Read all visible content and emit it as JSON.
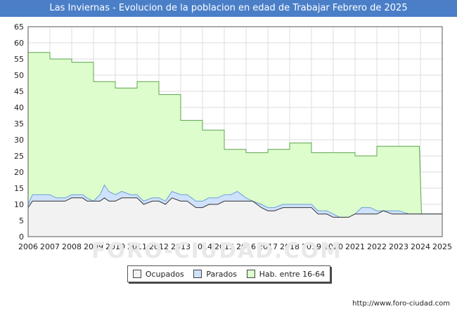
{
  "title": "Las Inviernas - Evolucion de la poblacion en edad de Trabajar Febrero de 2025",
  "source": "http://www.foro-ciudad.com",
  "watermark": "FORO-CIUDAD.COM",
  "colors": {
    "ocupados": "#f2f2f2",
    "parados": "#cfe2fb",
    "habitantes": "#ddfdcc",
    "hab_line": "#5aa54a",
    "parados_line": "#6a9fdc",
    "ocupados_line": "#333333"
  },
  "legend": [
    "Ocupados",
    "Parados",
    "Hab. entre 16-64"
  ],
  "chart_data": {
    "type": "area",
    "title": "Las Inviernas - Evolucion de la poblacion en edad de Trabajar Febrero de 2025",
    "xlabel": "",
    "ylabel": "",
    "xlim": [
      2006,
      2025
    ],
    "ylim": [
      0,
      65
    ],
    "x_ticks": [
      "2006",
      "2007",
      "2008",
      "2009",
      "2010",
      "2011",
      "2012",
      "2013",
      "2014",
      "2015",
      "2016",
      "2017",
      "2018",
      "2019",
      "2020",
      "2021",
      "2022",
      "2023",
      "2024",
      "2025"
    ],
    "y_ticks": [
      0,
      5,
      10,
      15,
      20,
      25,
      30,
      35,
      40,
      45,
      50,
      55,
      60,
      65
    ],
    "series": [
      {
        "name": "Hab. entre 16-64",
        "x": [
          2006,
          2007,
          2007,
          2008,
          2008,
          2009,
          2009,
          2010,
          2010,
          2011,
          2011,
          2012,
          2012,
          2013,
          2013,
          2014,
          2014,
          2015,
          2015,
          2016,
          2016,
          2017,
          2017,
          2018,
          2018,
          2019,
          2019,
          2020,
          2020,
          2021,
          2021,
          2022,
          2022,
          2023,
          2023,
          2023.95,
          2024.05
        ],
        "values": [
          57,
          57,
          55,
          55,
          54,
          54,
          48,
          48,
          46,
          46,
          48,
          48,
          44,
          44,
          36,
          36,
          33,
          33,
          27,
          27,
          26,
          26,
          27,
          27,
          29,
          29,
          26,
          26,
          26,
          26,
          25,
          25,
          28,
          28,
          28,
          28,
          7
        ]
      },
      {
        "name": "Parados",
        "x": [
          2006,
          2006.2,
          2007,
          2007.3,
          2007.7,
          2008,
          2008.5,
          2008.7,
          2009,
          2009.3,
          2009.5,
          2009.7,
          2010,
          2010.3,
          2010.7,
          2011,
          2011.3,
          2011.7,
          2012,
          2012.3,
          2012.6,
          2013,
          2013.3,
          2013.7,
          2014,
          2014.3,
          2014.7,
          2015,
          2015.3,
          2015.6,
          2016,
          2016.3,
          2016.7,
          2017,
          2017.3,
          2017.7,
          2018,
          2018.3,
          2018.7,
          2019,
          2019.3,
          2019.7,
          2020,
          2020.3,
          2020.7,
          2021,
          2021.3,
          2021.7,
          2022,
          2022.3,
          2022.7,
          2023,
          2023.5,
          2024,
          2025
        ],
        "values": [
          10,
          13,
          13,
          12,
          12,
          13,
          13,
          12,
          11,
          13,
          16,
          14,
          13,
          14,
          13,
          13,
          11,
          12,
          12,
          11,
          14,
          13,
          13,
          11,
          11,
          12,
          12,
          13,
          13,
          14,
          12,
          11,
          10,
          9,
          9,
          10,
          10,
          10,
          10,
          10,
          8,
          8,
          7,
          6,
          6,
          7,
          9,
          9,
          8,
          8,
          8,
          8,
          7,
          7,
          7
        ]
      },
      {
        "name": "Ocupados",
        "x": [
          2006,
          2006.2,
          2007,
          2007.3,
          2007.7,
          2008,
          2008.5,
          2008.7,
          2009,
          2009.3,
          2009.5,
          2009.7,
          2010,
          2010.3,
          2010.7,
          2011,
          2011.3,
          2011.7,
          2012,
          2012.3,
          2012.6,
          2013,
          2013.3,
          2013.7,
          2014,
          2014.3,
          2014.7,
          2015,
          2015.3,
          2015.6,
          2016,
          2016.3,
          2016.7,
          2017,
          2017.3,
          2017.7,
          2018,
          2018.3,
          2018.7,
          2019,
          2019.3,
          2019.7,
          2020,
          2020.3,
          2020.7,
          2021,
          2021.3,
          2021.7,
          2022,
          2022.3,
          2022.7,
          2023,
          2023.5,
          2024,
          2025
        ],
        "values": [
          9,
          11,
          11,
          11,
          11,
          12,
          12,
          11,
          11,
          11,
          12,
          11,
          11,
          12,
          12,
          12,
          10,
          11,
          11,
          10,
          12,
          11,
          11,
          9,
          9,
          10,
          10,
          11,
          11,
          11,
          11,
          11,
          9,
          8,
          8,
          9,
          9,
          9,
          9,
          9,
          7,
          7,
          6,
          6,
          6,
          7,
          7,
          7,
          7,
          8,
          7,
          7,
          7,
          7,
          7
        ]
      }
    ]
  }
}
